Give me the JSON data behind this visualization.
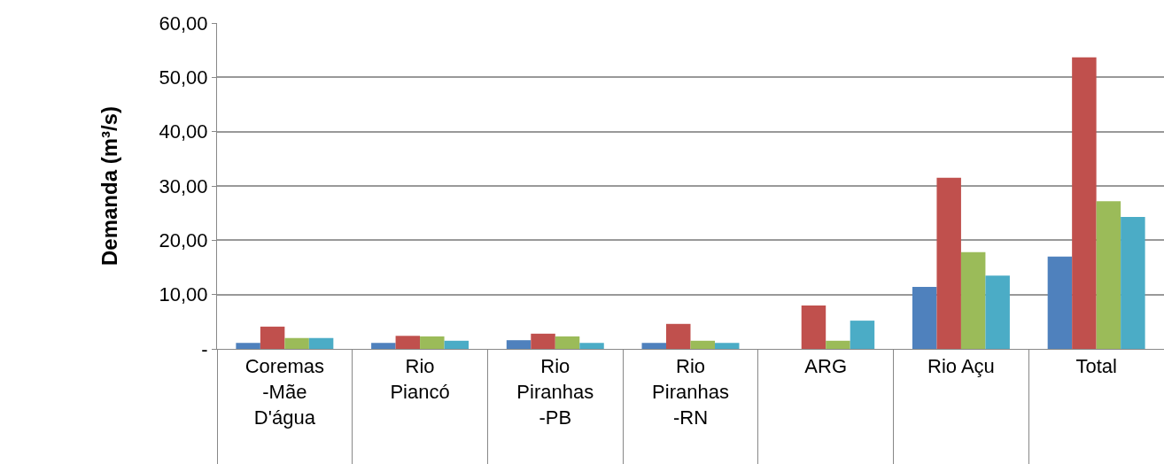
{
  "chart_data": {
    "type": "bar",
    "ylabel": "Demanda (m³/s)",
    "categories": [
      "Coremas\n-Mãe\nD'água",
      "Rio\nPiancó",
      "Rio\nPiranhas\n-PB",
      "Rio\nPiranhas\n-RN",
      "ARG",
      "Rio Açu",
      "Total"
    ],
    "series": [
      {
        "color": "#4f81bd",
        "values": [
          1.1,
          1.1,
          1.6,
          1.1,
          null,
          11.4,
          17.0
        ]
      },
      {
        "color": "#c0504d",
        "values": [
          4.1,
          2.4,
          2.8,
          4.6,
          8.0,
          31.5,
          53.7
        ]
      },
      {
        "color": "#9bbb59",
        "values": [
          2.0,
          2.3,
          2.3,
          1.5,
          1.5,
          17.8,
          27.2
        ]
      },
      {
        "color": "#4bacc6",
        "values": [
          2.0,
          1.5,
          1.1,
          1.1,
          5.2,
          13.5,
          24.3
        ]
      }
    ],
    "ylim": [
      0,
      60
    ],
    "yticks": [
      {
        "value": 0,
        "label": "-"
      },
      {
        "value": 10,
        "label": "10,00"
      },
      {
        "value": 20,
        "label": "20,00"
      },
      {
        "value": 30,
        "label": "30,00"
      },
      {
        "value": 40,
        "label": "40,00"
      },
      {
        "value": 50,
        "label": "50,00"
      },
      {
        "value": 60,
        "label": "60,00"
      }
    ],
    "grid": "y"
  }
}
